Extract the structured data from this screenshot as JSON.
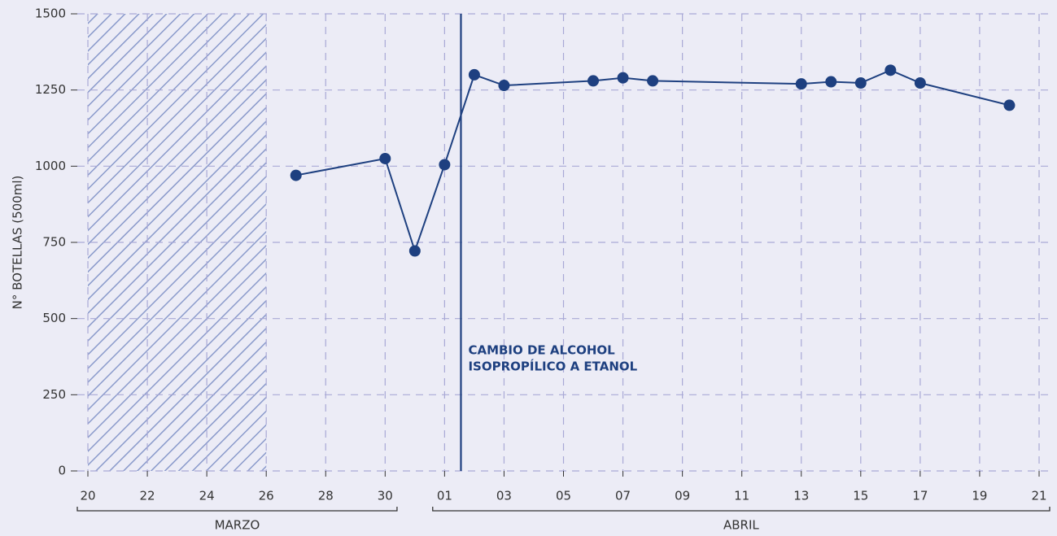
{
  "chart_data": {
    "type": "line",
    "y_label": "N° BOTELLAS (500ml)",
    "x": [
      7,
      10,
      11,
      12,
      13,
      14,
      17,
      18,
      19,
      24,
      25,
      26,
      27,
      28,
      31
    ],
    "series": [
      {
        "name": "Botellas",
        "color": "#1e4080",
        "values": [
          970,
          1025,
          722,
          1005,
          1300,
          1265,
          1280,
          1290,
          1280,
          1270,
          1277,
          1273,
          1315,
          1273,
          1200
        ]
      }
    ],
    "xlim": [
      -0.356,
      32.356
    ],
    "xticks": [
      {
        "value": 0,
        "label": "20"
      },
      {
        "value": 2,
        "label": "22"
      },
      {
        "value": 4,
        "label": "24"
      },
      {
        "value": 6,
        "label": "26"
      },
      {
        "value": 8,
        "label": "28"
      },
      {
        "value": 10,
        "label": "30"
      },
      {
        "value": 12,
        "label": "01"
      },
      {
        "value": 14,
        "label": "03"
      },
      {
        "value": 16,
        "label": "05"
      },
      {
        "value": 18,
        "label": "07"
      },
      {
        "value": 20,
        "label": "09"
      },
      {
        "value": 22,
        "label": "11"
      },
      {
        "value": 24,
        "label": "13"
      },
      {
        "value": 26,
        "label": "15"
      },
      {
        "value": 28,
        "label": "17"
      },
      {
        "value": 30,
        "label": "19"
      },
      {
        "value": 32,
        "label": "21"
      }
    ],
    "ylim": [
      0,
      1500
    ],
    "yticks": [
      0,
      250,
      500,
      750,
      1000,
      1250,
      1500
    ],
    "grid": true,
    "months": [
      "MARZO",
      "ABRIL"
    ],
    "shaded_region": [
      0,
      6
    ],
    "annotation": {
      "x": 12.55,
      "text": [
        "CAMBIO DE ALCOHOL",
        "ISOPROPÍLICO A ETANOL"
      ]
    }
  }
}
